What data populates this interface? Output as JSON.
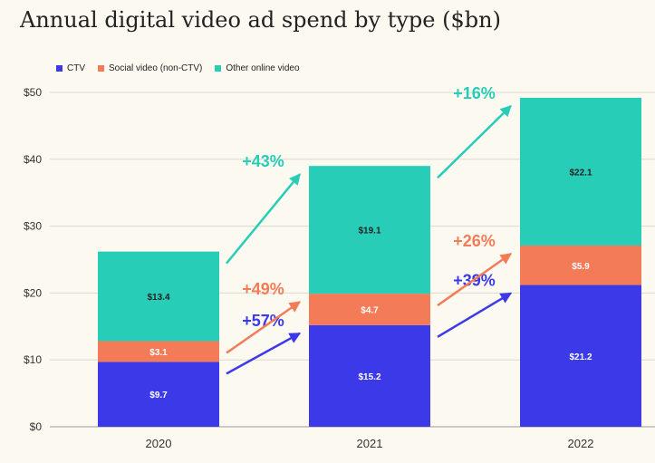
{
  "chart_data": {
    "type": "bar",
    "stacked": true,
    "title": "Annual digital video ad spend by type ($bn)",
    "categories": [
      "2020",
      "2021",
      "2022"
    ],
    "series": [
      {
        "name": "CTV",
        "color": "#3c3ae8",
        "values": [
          9.7,
          15.2,
          21.2
        ],
        "labels": [
          "$9.7",
          "$15.2",
          "$21.2"
        ],
        "label_color": "#ffffff"
      },
      {
        "name": "Social video (non-CTV)",
        "color": "#f47b57",
        "values": [
          3.1,
          4.7,
          5.9
        ],
        "labels": [
          "$3.1",
          "$4.7",
          "$5.9"
        ],
        "label_color": "#ffffff"
      },
      {
        "name": "Other online video",
        "color": "#27cdb7",
        "values": [
          13.4,
          19.1,
          22.1
        ],
        "labels": [
          "$13.4",
          "$19.1",
          "$22.1"
        ],
        "label_color": "#222222"
      }
    ],
    "ylim": [
      0,
      50
    ],
    "yticks": [
      0,
      10,
      20,
      30,
      40,
      50
    ],
    "ytick_labels": [
      "$0",
      "$10",
      "$20",
      "$30",
      "$40",
      "$50"
    ],
    "grid": true,
    "legend_position": "top-left",
    "growth_annotations": [
      {
        "from": "2020",
        "to": "2021",
        "series": "CTV",
        "text": "+57%"
      },
      {
        "from": "2020",
        "to": "2021",
        "series": "Social video (non-CTV)",
        "text": "+49%"
      },
      {
        "from": "2020",
        "to": "2021",
        "series": "Other online video",
        "text": "+43%"
      },
      {
        "from": "2021",
        "to": "2022",
        "series": "CTV",
        "text": "+39%"
      },
      {
        "from": "2021",
        "to": "2022",
        "series": "Social video (non-CTV)",
        "text": "+26%"
      },
      {
        "from": "2021",
        "to": "2022",
        "series": "Other online video",
        "text": "+16%"
      }
    ]
  }
}
